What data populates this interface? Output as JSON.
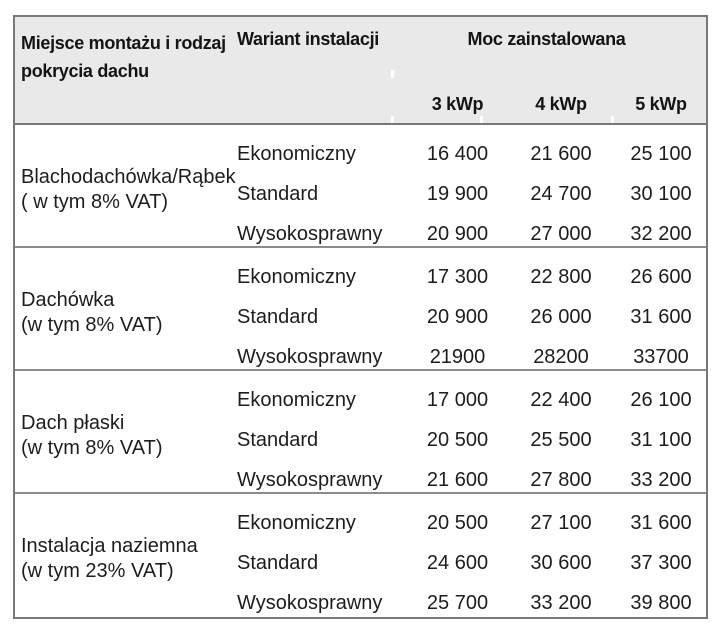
{
  "chart_data": {
    "type": "table",
    "header": {
      "location_line1": "Miejsce montażu i rodzaj",
      "location_line2": "pokrycia dachu",
      "location_full": "Miejsce montażu i rodzaj pokrycia dachu",
      "variant": "Wariant instalacji",
      "power_group": "Moc zainstalowana",
      "power_columns": [
        "3 kWp",
        "4 kWp",
        "5 kWp"
      ]
    },
    "groups": [
      {
        "location": "Blachodachówka/Rąbek",
        "vat_note": "( w tym 8% VAT)",
        "rows": [
          {
            "variant": "Ekonomiczny",
            "prices": [
              "16 400",
              "21 600",
              "25 100"
            ],
            "values": [
              16400,
              21600,
              25100
            ]
          },
          {
            "variant": "Standard",
            "prices": [
              "19 900",
              "24 700",
              "30 100"
            ],
            "values": [
              19900,
              24700,
              30100
            ]
          },
          {
            "variant": "Wysokosprawny",
            "prices": [
              "20 900",
              "27 000",
              "32 200"
            ],
            "values": [
              20900,
              27000,
              32200
            ]
          }
        ]
      },
      {
        "location": "Dachówka",
        "vat_note": "(w tym 8% VAT)",
        "rows": [
          {
            "variant": "Ekonomiczny",
            "prices": [
              "17 300",
              "22 800",
              "26 600"
            ],
            "values": [
              17300,
              22800,
              26600
            ]
          },
          {
            "variant": "Standard",
            "prices": [
              "20 900",
              "26 000",
              "31 600"
            ],
            "values": [
              20900,
              26000,
              31600
            ]
          },
          {
            "variant": "Wysokosprawny",
            "prices": [
              "21900",
              "28200",
              "33700"
            ],
            "values": [
              21900,
              28200,
              33700
            ]
          }
        ]
      },
      {
        "location": "Dach płaski",
        "vat_note": "(w tym 8% VAT)",
        "rows": [
          {
            "variant": "Ekonomiczny",
            "prices": [
              "17 000",
              "22 400",
              "26 100"
            ],
            "values": [
              17000,
              22400,
              26100
            ]
          },
          {
            "variant": "Standard",
            "prices": [
              "20 500",
              "25 500",
              "31 100"
            ],
            "values": [
              20500,
              25500,
              31100
            ]
          },
          {
            "variant": "Wysokosprawny",
            "prices": [
              "21 600",
              "27 800",
              "33 200"
            ],
            "values": [
              21600,
              27800,
              33200
            ]
          }
        ]
      },
      {
        "location": "Instalacja naziemna",
        "vat_note": "(w tym 23% VAT)",
        "rows": [
          {
            "variant": "Ekonomiczny",
            "prices": [
              "20 500",
              "27 100",
              "31 600"
            ],
            "values": [
              20500,
              27100,
              31600
            ]
          },
          {
            "variant": "Standard",
            "prices": [
              "24 600",
              "30 600",
              "37 300"
            ],
            "values": [
              24600,
              30600,
              37300
            ]
          },
          {
            "variant": "Wysokosprawny",
            "prices": [
              "25 700",
              "33 200",
              "39 800"
            ],
            "values": [
              25700,
              33200,
              39800
            ]
          }
        ]
      }
    ],
    "layout": {
      "grid": "horizontal group dividers only, no inner vertical lines in body",
      "header_background": true
    },
    "colors": {
      "header_bg": "#e9e9e9",
      "outer_border": "#787878",
      "group_divider": "#8c8c8c",
      "text": "#1d1d1d"
    }
  }
}
